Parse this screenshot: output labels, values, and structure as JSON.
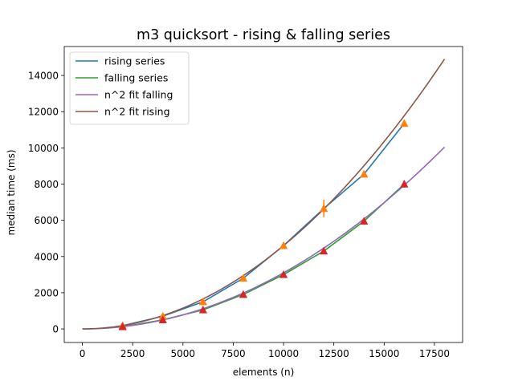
{
  "chart_data": {
    "type": "line",
    "title": "m3 quicksort - rising & falling series",
    "xlabel": "elements (n)",
    "ylabel": "median time (ms)",
    "xlim": [
      -900,
      18900
    ],
    "ylim": [
      -750,
      15600
    ],
    "xticks": [
      0,
      2500,
      5000,
      7500,
      10000,
      12500,
      15000,
      17500
    ],
    "yticks": [
      0,
      2000,
      4000,
      6000,
      8000,
      10000,
      12000,
      14000
    ],
    "grid": false,
    "legend_position": "top-left",
    "series": [
      {
        "name": "rising series",
        "color": "#1f77b4",
        "kind": "line",
        "x": [
          2000,
          4000,
          6000,
          8000,
          10000,
          12000,
          14000,
          16000
        ],
        "y": [
          180,
          700,
          1500,
          2800,
          4600,
          6650,
          8550,
          11350
        ]
      },
      {
        "name": "falling series",
        "color": "#2ca02c",
        "kind": "line",
        "x": [
          2000,
          4000,
          6000,
          8000,
          10000,
          12000,
          14000,
          16000
        ],
        "y": [
          120,
          500,
          1050,
          1900,
          3000,
          4300,
          5950,
          8000
        ]
      },
      {
        "name": "n^2 fit falling",
        "color": "#9467bd",
        "kind": "fit",
        "coef": 3.1e-05,
        "x_range": [
          0,
          18000
        ]
      },
      {
        "name": "n^2 fit rising",
        "color": "#8c564b",
        "kind": "fit",
        "coef": 4.6e-05,
        "x_range": [
          0,
          18000
        ]
      }
    ],
    "markers": [
      {
        "color": "#ff7f0e",
        "shape": "triangle",
        "x": [
          2000,
          4000,
          6000,
          8000,
          10000,
          12000,
          14000,
          16000
        ],
        "y": [
          180,
          700,
          1500,
          2800,
          4600,
          6650,
          8550,
          11350
        ],
        "err": [
          0,
          0,
          0,
          0,
          0,
          480,
          0,
          0
        ]
      },
      {
        "color": "#d62728",
        "shape": "triangle",
        "x": [
          2000,
          4000,
          6000,
          8000,
          10000,
          12000,
          14000,
          16000
        ],
        "y": [
          120,
          500,
          1050,
          1900,
          3000,
          4300,
          5950,
          8000
        ],
        "err": [
          0,
          0,
          0,
          0,
          0,
          0,
          0,
          200
        ]
      }
    ]
  }
}
